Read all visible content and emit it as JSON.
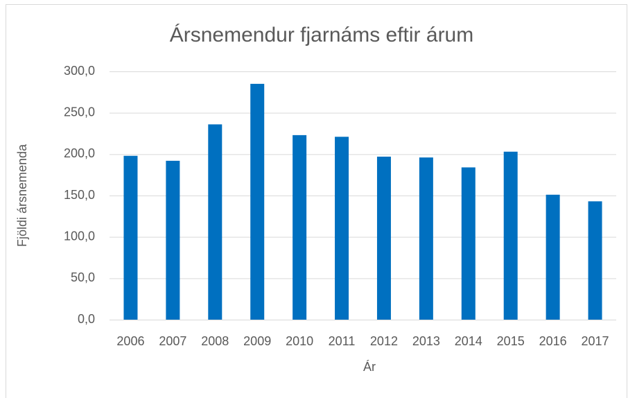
{
  "chart_data": {
    "type": "bar",
    "title": "Ársnemendur fjarnáms eftir árum",
    "x_label": "Ár",
    "y_label": "Fjöldi ársnemenda",
    "categories": [
      "2006",
      "2007",
      "2008",
      "2009",
      "2010",
      "2011",
      "2012",
      "2013",
      "2014",
      "2015",
      "2016",
      "2017"
    ],
    "values": [
      198,
      192,
      236,
      285,
      223,
      221,
      197,
      196,
      184,
      203,
      151,
      143
    ],
    "color": "#0070c0",
    "ylim": [
      0,
      300
    ],
    "yticks": [
      {
        "value": 0,
        "label": "0,0"
      },
      {
        "value": 50,
        "label": "50,0"
      },
      {
        "value": 100,
        "label": "100,0"
      },
      {
        "value": 150,
        "label": "150,0"
      },
      {
        "value": 200,
        "label": "200,0"
      },
      {
        "value": 250,
        "label": "250,0"
      },
      {
        "value": 300,
        "label": "300,0"
      }
    ],
    "grid": true
  }
}
